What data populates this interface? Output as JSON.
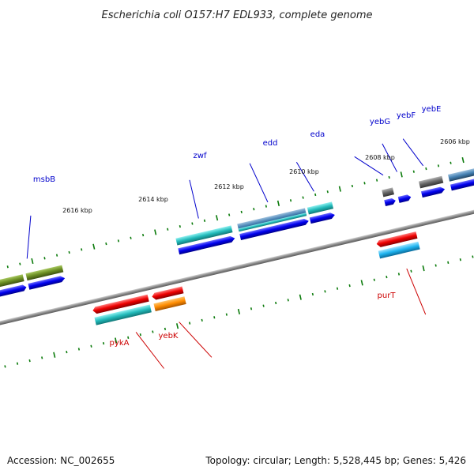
{
  "title": "Escherichia coli O157:H7 EDL933, complete genome",
  "footer": {
    "accession": "Accession: NC_002655",
    "topology": "Topology: circular; Length: 5,528,445 bp; Genes: 5,426"
  },
  "scale_labels": [
    "2616 kbp",
    "2614 kbp",
    "2612 kbp",
    "2610 kbp",
    "2608 kbp",
    "2606 kbp"
  ],
  "genes_forward": [
    "msbB",
    "zwf",
    "edd",
    "eda",
    "yebG",
    "yebF",
    "yebE"
  ],
  "genes_reverse": [
    "pykA",
    "yebK",
    "purT"
  ],
  "colors": {
    "label_forward": "#0000cc",
    "label_reverse": "#cc0000",
    "tick": "#0a7a0a",
    "backbone": "#888888",
    "cds_blue": "#0000ee",
    "teal": "#22bbbb",
    "olive": "#6b8e23",
    "red": "#ee0000",
    "orange": "#ff8c00",
    "sky": "#1eb4f0",
    "steel": "#4682b4",
    "gray": "#666666"
  }
}
